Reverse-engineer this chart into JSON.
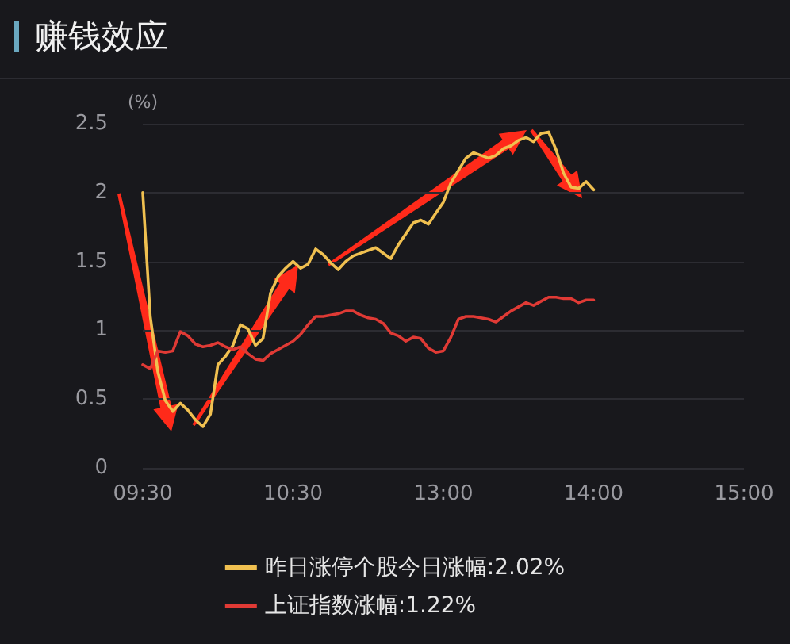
{
  "chart_data": {
    "type": "line",
    "title": "赚钱效应",
    "ylabel": "(%)",
    "categories": [
      "09:30",
      null,
      null,
      null,
      null,
      null,
      null,
      null,
      null,
      null,
      null,
      null,
      null,
      null,
      null,
      null,
      null,
      null,
      null,
      null,
      "10:30",
      null,
      null,
      null,
      null,
      null,
      null,
      null,
      null,
      null,
      null,
      null,
      null,
      null,
      null,
      null,
      null,
      null,
      null,
      null,
      "13:00",
      null,
      null,
      null,
      null,
      null,
      null,
      null,
      null,
      null,
      null,
      null,
      null,
      null,
      null,
      null,
      null,
      null,
      null,
      null,
      "14:00",
      null,
      null,
      null,
      null,
      null,
      null,
      null,
      null,
      null,
      null,
      null,
      null,
      null,
      null,
      null,
      null,
      null,
      null,
      null,
      "15:00"
    ],
    "ylim": [
      0,
      2.5
    ],
    "yticks": [
      0,
      0.5,
      1,
      1.5,
      2,
      2.5
    ],
    "grid": "y",
    "legend": "bottom",
    "marker": "none",
    "line_style": "solid",
    "series": [
      {
        "name": "昨日涨停个股今日涨幅:2.02%",
        "color": "#f0c050",
        "values": [
          2.0,
          1.1,
          0.7,
          0.49,
          0.41,
          0.47,
          0.42,
          0.35,
          0.3,
          0.39,
          0.75,
          0.81,
          0.89,
          1.04,
          1.01,
          0.89,
          0.94,
          1.27,
          1.39,
          1.45,
          1.5,
          1.45,
          1.48,
          1.59,
          1.55,
          1.49,
          1.44,
          1.5,
          1.54,
          1.56,
          1.58,
          1.6,
          1.56,
          1.52,
          1.62,
          1.7,
          1.78,
          1.8,
          1.77,
          1.85,
          1.93,
          2.07,
          2.16,
          2.25,
          2.29,
          2.27,
          2.25,
          2.27,
          2.32,
          2.34,
          2.38,
          2.4,
          2.37,
          2.43,
          2.44,
          2.31,
          2.14,
          2.04,
          2.03,
          2.08,
          2.02,
          null,
          null,
          null,
          null,
          null,
          null,
          null,
          null,
          null,
          null,
          null,
          null,
          null,
          null,
          null,
          null,
          null,
          null,
          null,
          null
        ]
      },
      {
        "name": "上证指数涨幅:1.22%",
        "color": "#e03a35",
        "values": [
          0.75,
          0.72,
          0.85,
          0.84,
          0.85,
          0.99,
          0.96,
          0.9,
          0.88,
          0.89,
          0.91,
          0.88,
          0.86,
          0.88,
          0.83,
          0.79,
          0.78,
          0.83,
          0.86,
          0.89,
          0.92,
          0.97,
          1.04,
          1.1,
          1.1,
          1.11,
          1.12,
          1.14,
          1.14,
          1.11,
          1.09,
          1.08,
          1.05,
          0.98,
          0.96,
          0.92,
          0.95,
          0.94,
          0.87,
          0.84,
          0.85,
          0.95,
          1.08,
          1.1,
          1.1,
          1.09,
          1.08,
          1.06,
          1.1,
          1.14,
          1.17,
          1.2,
          1.18,
          1.21,
          1.24,
          1.24,
          1.23,
          1.23,
          1.2,
          1.22,
          1.22,
          null,
          null,
          null,
          null,
          null,
          null,
          null,
          null,
          null,
          null,
          null,
          null,
          null,
          null,
          null,
          null,
          null,
          null,
          null,
          null
        ]
      }
    ]
  }
}
